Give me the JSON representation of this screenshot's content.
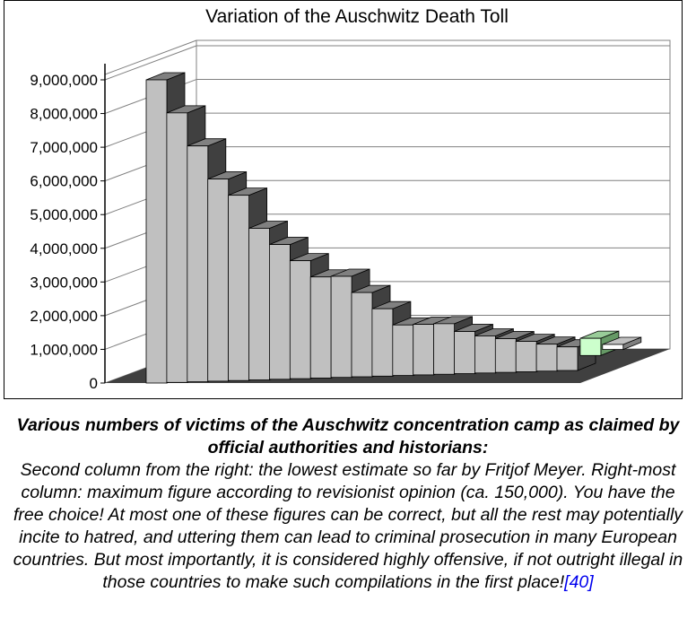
{
  "chart_data": {
    "type": "bar",
    "title": "Variation of the Auschwitz Death Toll",
    "xlabel": "",
    "ylabel": "",
    "ylim": [
      0,
      9000000
    ],
    "yticks": [
      "0",
      "1,000,000",
      "2,000,000",
      "3,000,000",
      "4,000,000",
      "5,000,000",
      "6,000,000",
      "7,000,000",
      "8,000,000",
      "9,000,000"
    ],
    "grid": true,
    "legend": "none",
    "values": [
      9000000,
      8000000,
      7000000,
      6000000,
      5500000,
      4500000,
      4000000,
      3500000,
      3000000,
      3000000,
      2500000,
      2000000,
      1500000,
      1500000,
      1500000,
      1250000,
      1100000,
      1000000,
      900000,
      800000,
      700000,
      510000,
      150000
    ],
    "colors": {
      "bar_front": "#c0c0c0",
      "bar_top": "#808080",
      "bar_side": "#404040",
      "meyer_front": "#ccffcc",
      "meyer_top": "#99cc99",
      "meyer_side": "#669966",
      "revisionist_front": "#ffffff",
      "revisionist_top": "#c0c0c0",
      "revisionist_side": "#808080",
      "floor": "#404040"
    }
  },
  "caption": {
    "heading": "Various numbers of victims of the Auschwitz concentration camp as claimed by official authorities and historians:",
    "body": "Second column from the right: the lowest estimate so far by Fritjof Meyer. Right-most column: maximum figure according to revisionist opinion (ca. 150,000). You have the free choice! At most one of these figures can be correct, but all the rest may potentially incite to hatred, and uttering them can lead to criminal prosecution in many European countries. But most importantly, it is considered highly offensive, if not outright illegal in those countries to make such compilations in the first place!",
    "ref": "[40]"
  }
}
